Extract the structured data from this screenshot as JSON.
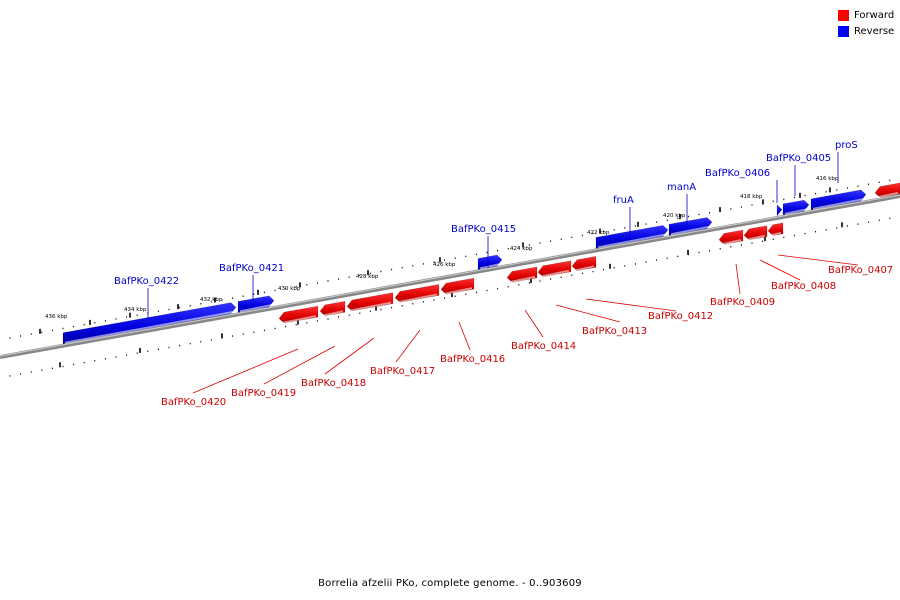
{
  "legend": {
    "forward": {
      "label": "Forward",
      "color": "#ff0000"
    },
    "reverse": {
      "label": "Reverse",
      "color": "#0000ff"
    }
  },
  "caption": "Borrelia afzelii PKo, complete genome. - 0..903609",
  "ticks": [
    "436 kbp",
    "434 kbp",
    "432 kbp",
    "430 kbp",
    "428 kbp",
    "426 kbp",
    "424 kbp",
    "422 kbp",
    "420 kbp",
    "418 kbp",
    "416 kbp"
  ],
  "reverse_genes": [
    "BafPKo_0422",
    "BafPKo_0421",
    "BafPKo_0415",
    "fruA",
    "manA",
    "BafPKo_0406",
    "BafPKo_0405",
    "proS"
  ],
  "forward_genes": [
    "BafPKo_0420",
    "BafPKo_0419",
    "BafPKo_0418",
    "BafPKo_0417",
    "BafPKo_0416",
    "BafPKo_0414",
    "BafPKo_0413",
    "BafPKo_0412",
    "BafPKo_0409",
    "BafPKo_0408",
    "BafPKo_0407"
  ]
}
